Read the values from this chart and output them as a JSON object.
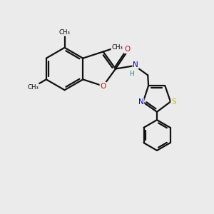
{
  "background_color": "#ebebeb",
  "atom_colors": {
    "C": "#000000",
    "N": "#0000ee",
    "O": "#ee0000",
    "S": "#ccbb00",
    "H": "#008888"
  },
  "bond_color": "#111111",
  "bond_width": 1.6,
  "figsize": [
    3.0,
    3.0
  ],
  "dpi": 100,
  "xlim": [
    0,
    10
  ],
  "ylim": [
    0,
    10
  ]
}
